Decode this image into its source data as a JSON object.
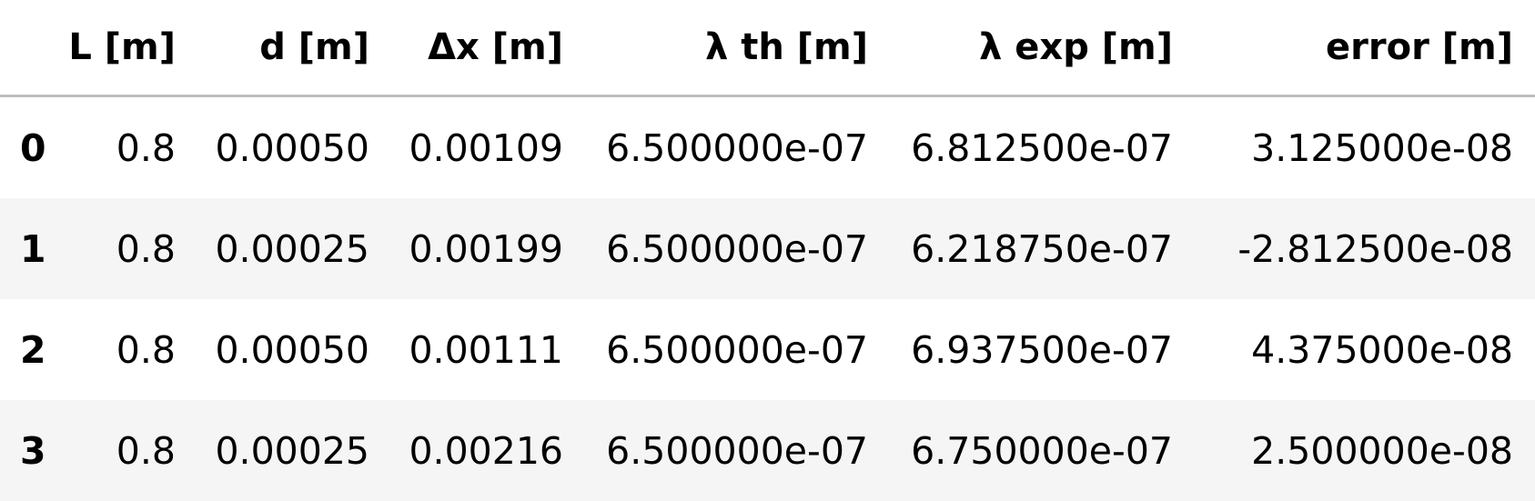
{
  "table": {
    "columns": [
      "",
      "L [m]",
      "d [m]",
      "Δx [m]",
      "λ th [m]",
      "λ exp [m]",
      "error [m]"
    ],
    "rows": [
      {
        "index": "0",
        "L": "0.8",
        "d": "0.00050",
        "dx": "0.00109",
        "lambda_th": "6.500000e-07",
        "lambda_exp": "6.812500e-07",
        "error": "3.125000e-08"
      },
      {
        "index": "1",
        "L": "0.8",
        "d": "0.00025",
        "dx": "0.00199",
        "lambda_th": "6.500000e-07",
        "lambda_exp": "6.218750e-07",
        "error": "-2.812500e-08"
      },
      {
        "index": "2",
        "L": "0.8",
        "d": "0.00050",
        "dx": "0.00111",
        "lambda_th": "6.500000e-07",
        "lambda_exp": "6.937500e-07",
        "error": "4.375000e-08"
      },
      {
        "index": "3",
        "L": "0.8",
        "d": "0.00025",
        "dx": "0.00216",
        "lambda_th": "6.500000e-07",
        "lambda_exp": "6.750000e-07",
        "error": "2.500000e-08"
      }
    ]
  },
  "colors": {
    "header_border": "#bdbdbd",
    "alt_row": "#f5f5f5",
    "text": "#000000"
  }
}
